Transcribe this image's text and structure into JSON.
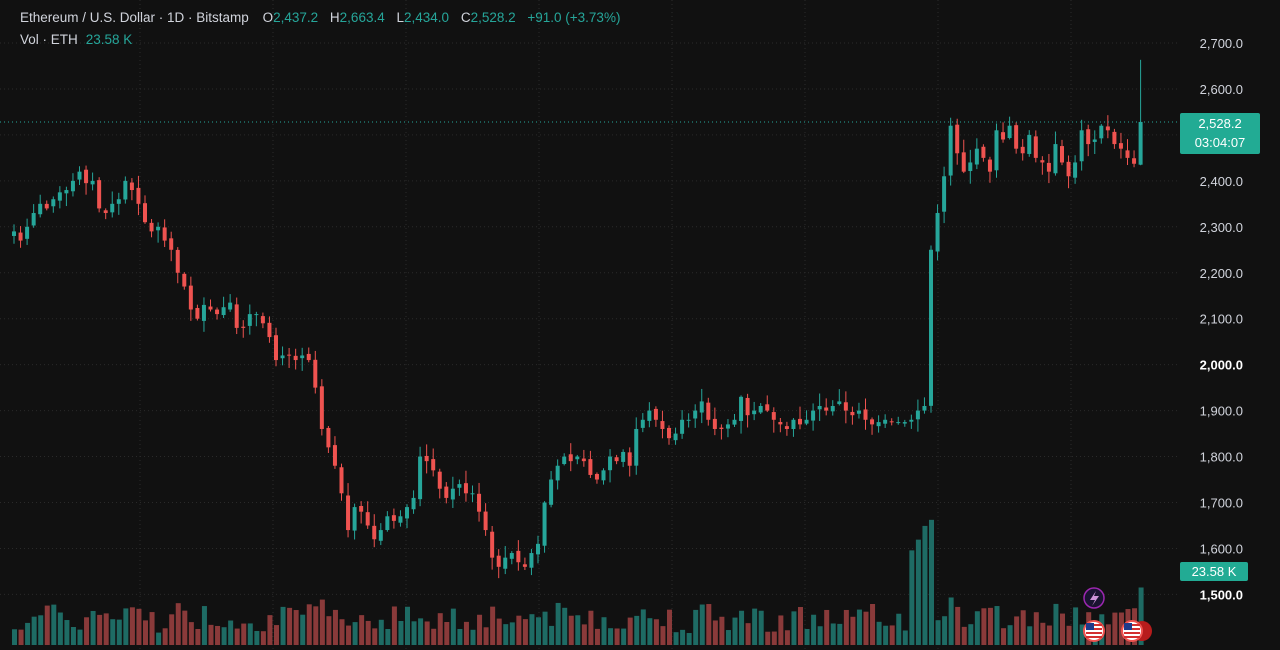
{
  "legend": {
    "symbol": "Ethereum / U.S. Dollar · 1D · Bitstamp",
    "open_label": "O",
    "open": "2,437.2",
    "high_label": "H",
    "high": "2,663.4",
    "low_label": "L",
    "low": "2,434.0",
    "close_label": "C",
    "close": "2,528.2",
    "change": "+91.0 (+3.73%)",
    "vol_label": "Vol · ETH",
    "vol_value": "23.58 K"
  },
  "price_tag": {
    "price": "2,528.2",
    "countdown": "03:04:07"
  },
  "vol_tag": "23.58 K",
  "colors": {
    "up": "#26a69a",
    "down": "#ef5350",
    "up_vol": "#1e6b64",
    "down_vol": "#8a3a3a",
    "background": "#111111",
    "grid": "#2a2a2a"
  },
  "icons": [
    "flash-event-icon",
    "us-flag-icon",
    "us-flag-icon"
  ],
  "chart_data": {
    "type": "candlestick",
    "ylim": [
      1450,
      2740
    ],
    "y_ticks": [
      {
        "value": 2700,
        "label": "2,700.0",
        "bold": false
      },
      {
        "value": 2600,
        "label": "2,600.0",
        "bold": false
      },
      {
        "value": 2500,
        "label": "2,500.0",
        "bold": false
      },
      {
        "value": 2400,
        "label": "2,400.0",
        "bold": false
      },
      {
        "value": 2300,
        "label": "2,300.0",
        "bold": false
      },
      {
        "value": 2200,
        "label": "2,200.0",
        "bold": false
      },
      {
        "value": 2100,
        "label": "2,100.0",
        "bold": false
      },
      {
        "value": 2000,
        "label": "2,000.0",
        "bold": true
      },
      {
        "value": 1900,
        "label": "1,900.0",
        "bold": false
      },
      {
        "value": 1800,
        "label": "1,800.0",
        "bold": false
      },
      {
        "value": 1700,
        "label": "1,700.0",
        "bold": false
      },
      {
        "value": 1600,
        "label": "1,600.0",
        "bold": false
      },
      {
        "value": 1500,
        "label": "1,500.0",
        "bold": true
      }
    ],
    "last_price": 2528.2,
    "closes": [
      2290,
      2270,
      2300,
      2330,
      2350,
      2340,
      2360,
      2375,
      2380,
      2400,
      2420,
      2395,
      2400,
      2340,
      2330,
      2350,
      2360,
      2400,
      2380,
      2350,
      2310,
      2290,
      2300,
      2270,
      2250,
      2200,
      2170,
      2120,
      2100,
      2130,
      2120,
      2110,
      2125,
      2135,
      2080,
      2080,
      2110,
      2110,
      2090,
      2060,
      2010,
      2020,
      2020,
      2010,
      2020,
      2010,
      1950,
      1860,
      1820,
      1780,
      1720,
      1640,
      1690,
      1680,
      1650,
      1620,
      1640,
      1670,
      1660,
      1670,
      1690,
      1710,
      1800,
      1790,
      1770,
      1730,
      1710,
      1730,
      1740,
      1720,
      1720,
      1680,
      1640,
      1580,
      1560,
      1580,
      1590,
      1570,
      1560,
      1590,
      1610,
      1700,
      1750,
      1780,
      1800,
      1790,
      1800,
      1790,
      1760,
      1750,
      1770,
      1800,
      1790,
      1810,
      1780,
      1860,
      1880,
      1900,
      1880,
      1860,
      1840,
      1850,
      1880,
      1880,
      1900,
      1920,
      1880,
      1860,
      1860,
      1870,
      1880,
      1930,
      1890,
      1900,
      1910,
      1900,
      1880,
      1870,
      1860,
      1880,
      1870,
      1880,
      1900,
      1910,
      1900,
      1910,
      1920,
      1900,
      1890,
      1900,
      1880,
      1870,
      1875,
      1880,
      1875,
      1875,
      1875,
      1880,
      1900,
      1910,
      2250,
      2330,
      2410,
      2520,
      2460,
      2420,
      2440,
      2470,
      2450,
      2420,
      2510,
      2490,
      2520,
      2470,
      2460,
      2500,
      2450,
      2440,
      2420,
      2480,
      2440,
      2410,
      2440,
      2510,
      2480,
      2490,
      2520,
      2510,
      2480,
      2470,
      2450,
      2437.2,
      2528.2
    ],
    "volume": {
      "ylim": [
        0,
        135
      ],
      "last_value_k": 23.58
    }
  }
}
